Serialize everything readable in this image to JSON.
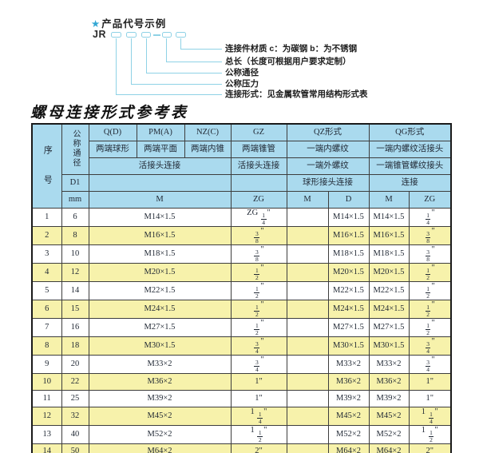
{
  "diagram": {
    "star": "★",
    "title": "产品代号示例",
    "code_prefix": "JR",
    "labels": [
      "连接件材质  c：为碳钢  b：为不锈钢",
      "总长（长度可根据用户要求定制）",
      "公称通径",
      "公称压力",
      "连接形式：见金属软管常用结构形式表"
    ]
  },
  "table": {
    "title": "螺母连接形式参考表",
    "header": {
      "seq": "序号",
      "nominal_dia": "公称通径",
      "d1": "D1",
      "mm": "mm",
      "col_q": "Q(D)",
      "col_pm": "PM(A)",
      "col_nz": "NZ(C)",
      "col_gz": "GZ",
      "col_qz": "QZ形式",
      "col_qg": "QG形式",
      "q_type": "两端球形",
      "pm_type": "两端平面",
      "nz_type": "两端内锥",
      "gz_type": "两端锥管",
      "qz_type1": "一端内螺纹",
      "qg_type1": "一端内螺纹活接头",
      "union_conn": "活接头连接",
      "gz_conn": "活接头连接",
      "qz_type2": "一端外螺纹",
      "qg_type2": "一端锥管螺纹接头",
      "qz_conn": "球形接头连接",
      "qg_conn": "连接",
      "m_label": "M",
      "zg_label": "ZG",
      "qz_m_label": "M",
      "qz_d_label": "D",
      "qg_m_label": "M",
      "qg_zg_label": "ZG"
    },
    "rows": [
      [
        "1",
        "6",
        "M14×1.5",
        "ZG 1/4\"",
        "",
        "M14×1.5",
        "M14×1.5",
        "1/4\""
      ],
      [
        "2",
        "8",
        "M16×1.5",
        "3/8\"",
        "",
        "M16×1.5",
        "M16×1.5",
        "3/8\""
      ],
      [
        "3",
        "10",
        "M18×1.5",
        "3/8\"",
        "",
        "M18×1.5",
        "M18×1.5",
        "3/8\""
      ],
      [
        "4",
        "12",
        "M20×1.5",
        "1/2\"",
        "",
        "M20×1.5",
        "M20×1.5",
        "1/2\""
      ],
      [
        "5",
        "14",
        "M22×1.5",
        "1/2\"",
        "",
        "M22×1.5",
        "M22×1.5",
        "1/2\""
      ],
      [
        "6",
        "15",
        "M24×1.5",
        "1/2\"",
        "",
        "M24×1.5",
        "M24×1.5",
        "1/2\""
      ],
      [
        "7",
        "16",
        "M27×1.5",
        "1/2\"",
        "",
        "M27×1.5",
        "M27×1.5",
        "1/2\""
      ],
      [
        "8",
        "18",
        "M30×1.5",
        "3/4\"",
        "",
        "M30×1.5",
        "M30×1.5",
        "3/4\""
      ],
      [
        "9",
        "20",
        "M33×2",
        "3/4\"",
        "",
        "M33×2",
        "M33×2",
        "3/4\""
      ],
      [
        "10",
        "22",
        "M36×2",
        "1\"",
        "",
        "M36×2",
        "M36×2",
        "1\""
      ],
      [
        "11",
        "25",
        "M39×2",
        "1\"",
        "",
        "M39×2",
        "M39×2",
        "1\""
      ],
      [
        "12",
        "32",
        "M45×2",
        "1 1/4\"",
        "",
        "M45×2",
        "M45×2",
        "1 1/4\""
      ],
      [
        "13",
        "40",
        "M52×2",
        "1 1/2\"",
        "",
        "M52×2",
        "M52×2",
        "1 1/2\""
      ],
      [
        "14",
        "50",
        "M64×2",
        "2\"",
        "",
        "M64×2",
        "M64×2",
        "2\""
      ]
    ]
  },
  "colors": {
    "header_bg": "#aadaee",
    "alt_row_bg": "#f7f2ab",
    "diagram_line": "#8fd2e6",
    "star_accent": "#33a7d4",
    "grid_line": "#3d3d3d",
    "outer_border": "#1a1a1a"
  }
}
